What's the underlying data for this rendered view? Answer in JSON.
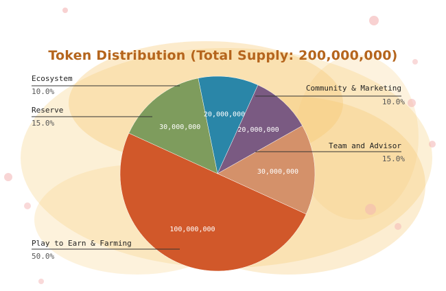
{
  "chart_data": {
    "type": "pie",
    "title": "Token Distribution (Total Supply: 200,000,000)",
    "slices": [
      {
        "name": "Ecosystem",
        "value": 20000000,
        "value_label": "20,000,000",
        "percent_label": "10.0%",
        "color": "#2a86a8"
      },
      {
        "name": "Community & Marketing",
        "value": 20000000,
        "value_label": "20,000,000",
        "percent_label": "10.0%",
        "color": "#7a5a82"
      },
      {
        "name": "Team and Advisor",
        "value": 30000000,
        "value_label": "30,000,000",
        "percent_label": "15.0%",
        "color": "#d4916a"
      },
      {
        "name": "Play to Earn & Farming",
        "value": 100000000,
        "value_label": "100,000,000",
        "percent_label": "50.0%",
        "color": "#d1582a"
      },
      {
        "name": "Reserve",
        "value": 30000000,
        "value_label": "30,000,000",
        "percent_label": "15.0%",
        "color": "#7e9c5d"
      }
    ]
  },
  "colors": {
    "title": "#b5651d",
    "background_splash": "#f6c66e",
    "background_spots": "#f3b3b3",
    "leader_line": "#333333"
  }
}
